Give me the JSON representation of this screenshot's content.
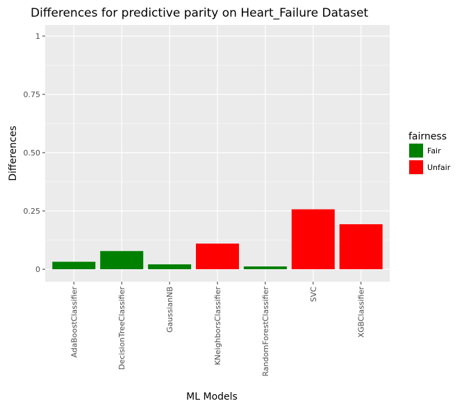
{
  "chart_data": {
    "type": "bar",
    "title": "Differences for predictive parity on Heart_Failure Dataset",
    "xlabel": "ML Models",
    "ylabel": "Differences",
    "categories": [
      "AdaBoostClassifier",
      "DecisionTreeClassifier",
      "GaussianNB",
      "KNeighborsClassifier",
      "RandomForestClassifier",
      "SVC",
      "XGBClassifier"
    ],
    "values": [
      0.032,
      0.078,
      0.021,
      0.11,
      0.012,
      0.257,
      0.193
    ],
    "fairness": [
      "Fair",
      "Fair",
      "Fair",
      "Unfair",
      "Fair",
      "Unfair",
      "Unfair"
    ],
    "ylim": [
      0,
      1
    ],
    "yticks": [
      0,
      0.25,
      0.5,
      0.75,
      1
    ],
    "ytick_labels": [
      "0",
      "0.25",
      "0.50",
      "0.75",
      "1"
    ],
    "grid": true,
    "legend": {
      "title": "fairness",
      "placement": "right",
      "entries": [
        {
          "label": "Fair",
          "color": "#008000"
        },
        {
          "label": "Unfair",
          "color": "#ff0000"
        }
      ]
    },
    "colors": {
      "Fair": "#008000",
      "Unfair": "#ff0000",
      "panel": "#ebebeb",
      "grid": "#ffffff"
    }
  }
}
